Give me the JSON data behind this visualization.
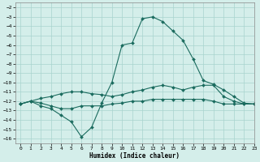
{
  "xlabel": "Humidex (Indice chaleur)",
  "xlim": [
    -0.5,
    23
  ],
  "ylim": [
    -16.5,
    -1.5
  ],
  "yticks": [
    -16,
    -15,
    -14,
    -13,
    -12,
    -11,
    -10,
    -9,
    -8,
    -7,
    -6,
    -5,
    -4,
    -3,
    -2
  ],
  "xticks": [
    0,
    1,
    2,
    3,
    4,
    5,
    6,
    7,
    8,
    9,
    10,
    11,
    12,
    13,
    14,
    15,
    16,
    17,
    18,
    19,
    20,
    21,
    22,
    23
  ],
  "bg_color": "#d4eeea",
  "grid_color": "#a8d4ce",
  "line_color": "#1a6b5e",
  "line1_y": [
    -12.3,
    -12.0,
    -12.5,
    -12.8,
    -13.5,
    -14.2,
    -15.8,
    -14.8,
    -12.2,
    -10.0,
    -6.0,
    -5.8,
    -3.2,
    -3.0,
    -3.5,
    -4.5,
    -5.5,
    -7.5,
    -9.8,
    -10.2,
    -10.8,
    -11.5,
    -12.2,
    -12.3
  ],
  "line2_y": [
    -12.3,
    -12.0,
    -11.7,
    -11.5,
    -11.2,
    -11.0,
    -11.0,
    -11.2,
    -11.3,
    -11.5,
    -11.3,
    -11.0,
    -10.8,
    -10.5,
    -10.3,
    -10.5,
    -10.8,
    -10.5,
    -10.3,
    -10.3,
    -11.5,
    -12.0,
    -12.3,
    -12.3
  ],
  "line3_y": [
    -12.3,
    -12.0,
    -12.2,
    -12.5,
    -12.8,
    -12.8,
    -12.5,
    -12.5,
    -12.5,
    -12.3,
    -12.2,
    -12.0,
    -12.0,
    -11.8,
    -11.8,
    -11.8,
    -11.8,
    -11.8,
    -11.8,
    -12.0,
    -12.3,
    -12.3,
    -12.3,
    -12.3
  ],
  "tick_fontsize": 4.5,
  "xlabel_fontsize": 5.5
}
